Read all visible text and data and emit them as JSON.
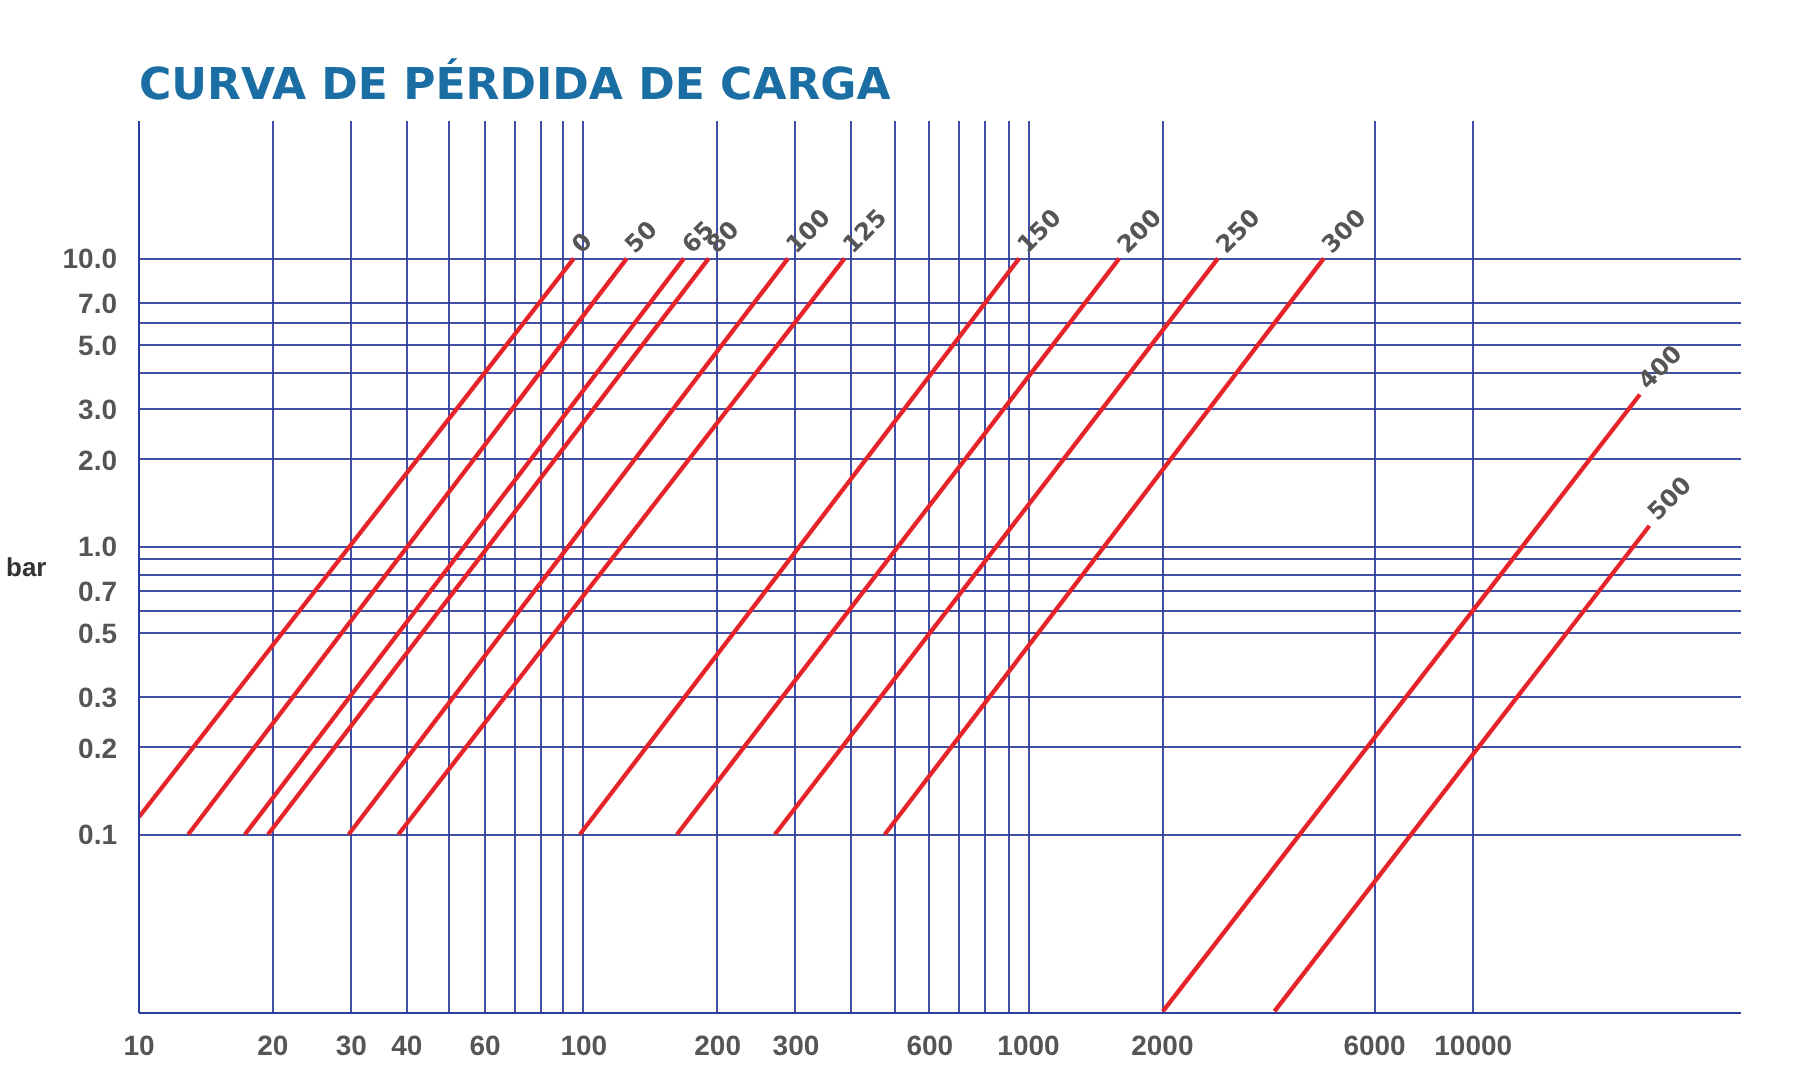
{
  "chart_data": {
    "type": "line",
    "title": "CURVA DE PÉRDIDA DE CARGA",
    "ylabel": "bar",
    "log": "xy",
    "grid": true,
    "marker": "none",
    "line_style": "solid",
    "xlim": [
      10,
      40000
    ],
    "ylim": [
      0.024,
      30
    ],
    "xticks": [
      10,
      20,
      30,
      40,
      {
        "value": 50,
        "label": null
      },
      60,
      {
        "value": 70,
        "label": null
      },
      {
        "value": 80,
        "label": null
      },
      {
        "value": 90,
        "label": null
      },
      100,
      200,
      300,
      {
        "value": 400,
        "label": null
      },
      {
        "value": 500,
        "label": null
      },
      600,
      {
        "value": 700,
        "label": null
      },
      {
        "value": 800,
        "label": null
      },
      {
        "value": 900,
        "label": null
      },
      1000,
      2000,
      6000,
      10000
    ],
    "yticks": [
      {
        "value": 0.1,
        "label": "0.1"
      },
      {
        "value": 0.2,
        "label": "0.2"
      },
      {
        "value": 0.3,
        "label": "0.3"
      },
      {
        "value": 0.5,
        "label": "0.5"
      },
      {
        "value": 0.6,
        "label": null
      },
      {
        "value": 0.7,
        "label": "0.7"
      },
      {
        "value": 0.8,
        "label": null
      },
      {
        "value": 0.9,
        "label": null
      },
      {
        "value": 1,
        "label": "1.0"
      },
      {
        "value": 2,
        "label": "2.0"
      },
      {
        "value": 3,
        "label": "3.0"
      },
      {
        "value": 4,
        "label": null
      },
      {
        "value": 5,
        "label": "5.0"
      },
      {
        "value": 6,
        "label": null
      },
      {
        "value": 7,
        "label": "7.0"
      },
      {
        "value": 10,
        "label": "10.0"
      }
    ],
    "series": [
      {
        "name": "0",
        "color": "#e52329",
        "x": [
          10,
          95
        ],
        "values": [
          0.115,
          10
        ]
      },
      {
        "name": "50",
        "color": "#e52329",
        "x": [
          12.9,
          125
        ],
        "values": [
          0.1,
          10
        ]
      },
      {
        "name": "65",
        "color": "#e52329",
        "x": [
          17.3,
          168
        ],
        "values": [
          0.1,
          10
        ]
      },
      {
        "name": "80",
        "color": "#e52329",
        "x": [
          19.5,
          191
        ],
        "values": [
          0.1,
          10
        ]
      },
      {
        "name": "100",
        "color": "#e52329",
        "x": [
          29.6,
          288
        ],
        "values": [
          0.1,
          10
        ]
      },
      {
        "name": "125",
        "color": "#e52329",
        "x": [
          38.3,
          386
        ],
        "values": [
          0.1,
          10
        ]
      },
      {
        "name": "150",
        "color": "#e52329",
        "x": [
          98,
          953
        ],
        "values": [
          0.1,
          10
        ]
      },
      {
        "name": "200",
        "color": "#e52329",
        "x": [
          162,
          1600
        ],
        "values": [
          0.1,
          10
        ]
      },
      {
        "name": "250",
        "color": "#e52329",
        "x": [
          269,
          2667
        ],
        "values": [
          0.1,
          10
        ]
      },
      {
        "name": "300",
        "color": "#e52329",
        "x": [
          475,
          4613
        ],
        "values": [
          0.1,
          10
        ]
      },
      {
        "name": "400",
        "color": "#e52329",
        "x": [
          2005,
          23700
        ],
        "values": [
          0.0243,
          3.37
        ]
      },
      {
        "name": "500",
        "color": "#e52329",
        "x": [
          3573,
          24900
        ],
        "values": [
          0.0243,
          1.18
        ]
      }
    ]
  }
}
